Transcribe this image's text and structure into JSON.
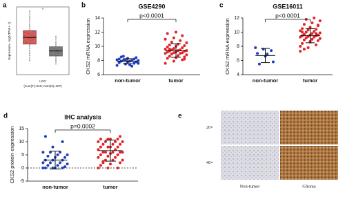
{
  "chart_data": [
    {
      "type": "box",
      "label": "a",
      "ylabel": "Expression - log2(TPM + 1)",
      "xlabel": "LGG",
      "note": "(num(T)=518; num(N)=207)",
      "annotation": "*",
      "ylim": [
        0,
        8
      ],
      "boxes": [
        {
          "color": "#e05a5a",
          "whisker_low": 1.6,
          "q1": 3.6,
          "median": 4.4,
          "q3": 5.2,
          "whisker_high": 7.6
        },
        {
          "color": "#7f7f7f",
          "whisker_low": 1.2,
          "q1": 2.2,
          "median": 2.8,
          "q3": 3.3,
          "whisker_high": 4.6
        }
      ]
    },
    {
      "type": "dot",
      "label": "b",
      "title": "GSE4290",
      "ylabel": "CKS2 mRNA expression",
      "annotation": "p<0.0001",
      "ylim": [
        6,
        14
      ],
      "yticks": [
        6,
        8,
        10,
        12,
        14
      ],
      "series": [
        {
          "name": "non-tumor",
          "color": "#1f3fbf",
          "mean": 7.9,
          "sd": 0.35,
          "values": [
            7.3,
            7.5,
            7.6,
            7.7,
            7.8,
            7.8,
            7.9,
            7.9,
            8.0,
            8.0,
            8.0,
            8.1,
            8.1,
            8.2,
            8.2,
            8.3,
            8.4,
            8.5,
            7.4,
            7.6,
            8.6,
            7.2
          ]
        },
        {
          "name": "tumor",
          "color": "#e0242a",
          "mean": 9.4,
          "sd": 0.95,
          "values": [
            7.6,
            7.9,
            8.1,
            8.3,
            8.4,
            8.5,
            8.6,
            8.7,
            8.8,
            8.9,
            9.0,
            9.0,
            9.1,
            9.1,
            9.2,
            9.2,
            9.3,
            9.3,
            9.4,
            9.4,
            9.5,
            9.5,
            9.6,
            9.7,
            9.8,
            9.9,
            10.0,
            10.1,
            10.2,
            10.3,
            10.5,
            10.6,
            10.8,
            11.0,
            11.2,
            11.5,
            11.8,
            12.0,
            8.2,
            9.6
          ]
        }
      ]
    },
    {
      "type": "dot",
      "label": "c",
      "title": "GSE16011",
      "ylabel": "CKS2 mRNA expression",
      "annotation": "p<0.0001",
      "ylim": [
        4,
        12
      ],
      "yticks": [
        4,
        6,
        8,
        10,
        12
      ],
      "series": [
        {
          "name": "non-tumor",
          "color": "#1f3fbf",
          "mean": 6.7,
          "sd": 1.0,
          "values": [
            7.8,
            7.6,
            7.4,
            7.0,
            6.6,
            5.8,
            5.5,
            6.9
          ]
        },
        {
          "name": "tumor",
          "color": "#e0242a",
          "mean": 9.5,
          "sd": 1.0,
          "values": [
            7.3,
            7.8,
            8.2,
            8.4,
            8.6,
            8.8,
            8.9,
            9.0,
            9.1,
            9.2,
            9.3,
            9.3,
            9.4,
            9.5,
            9.5,
            9.6,
            9.6,
            9.7,
            9.8,
            9.9,
            10.0,
            10.1,
            10.2,
            10.3,
            10.4,
            10.5,
            10.7,
            10.9,
            11.1,
            11.3,
            11.6,
            11.8,
            12.0,
            8.0,
            9.4,
            9.8,
            10.0,
            8.7,
            11.0,
            7.6
          ]
        }
      ]
    },
    {
      "type": "dot",
      "label": "d",
      "title": "IHC analysis",
      "ylabel": "CKS2 protein expression",
      "annotation": "p=0.0002",
      "ylim": [
        -5,
        15
      ],
      "yticks": [
        -5,
        0,
        5,
        10,
        15
      ],
      "hline": 0,
      "series": [
        {
          "name": "non-tumor",
          "color": "#1f3fbf",
          "mean": 3.0,
          "sd": 3.4,
          "values": [
            0,
            0,
            0,
            0,
            0,
            0.5,
            1,
            1,
            1.5,
            2,
            2,
            2,
            3,
            3,
            3,
            4,
            4,
            4.5,
            5,
            5,
            6,
            6,
            6,
            8,
            10,
            12
          ]
        },
        {
          "name": "tumor",
          "color": "#e0242a",
          "mean": 6.6,
          "sd": 4.0,
          "values": [
            0,
            0,
            0,
            1,
            1.5,
            2,
            2,
            3,
            3,
            3,
            4,
            4,
            4.5,
            5,
            5,
            5.5,
            6,
            6,
            6,
            6,
            6,
            7,
            7,
            8,
            8,
            8,
            8,
            9,
            9,
            9,
            10,
            10,
            10,
            10,
            11,
            11,
            11,
            11,
            12,
            2.5
          ]
        }
      ]
    },
    {
      "type": "image",
      "label": "e",
      "row_labels": [
        "20×",
        "40×"
      ],
      "col_labels": [
        "Non-tumor",
        "Glioma"
      ]
    }
  ]
}
